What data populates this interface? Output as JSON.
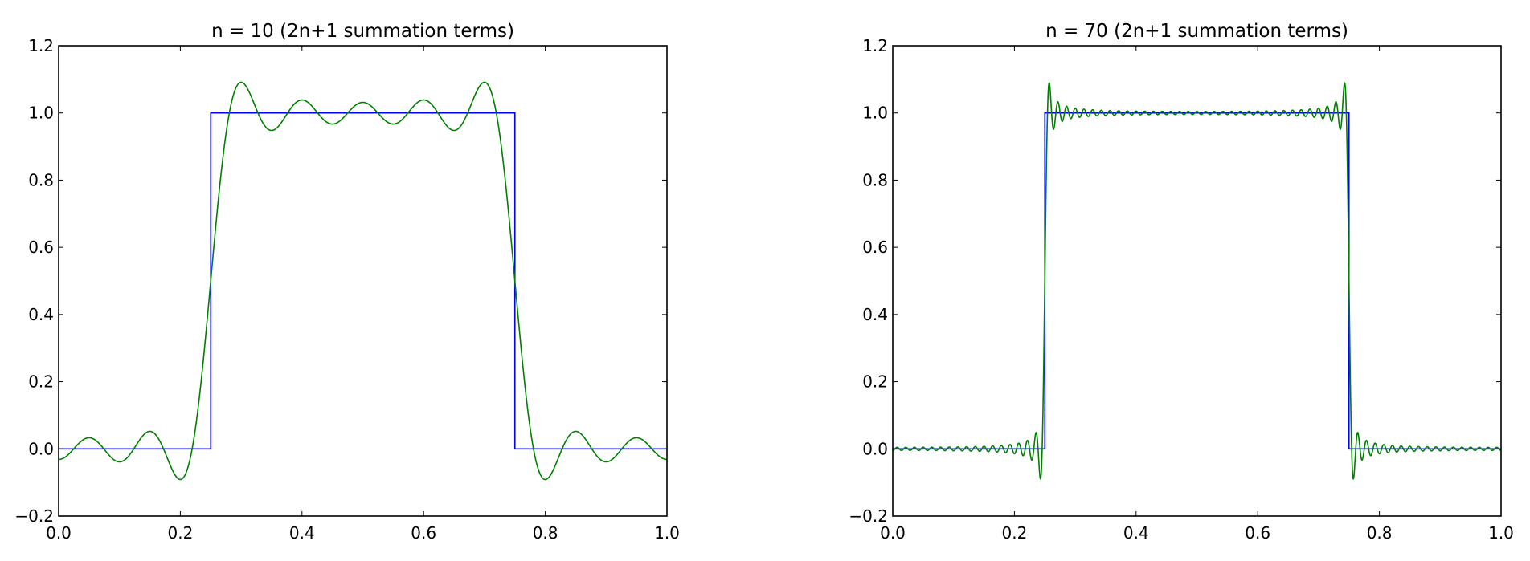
{
  "chart_data": [
    {
      "type": "line",
      "title": "n = 10 (2n+1 summation terms)",
      "n": 10,
      "xlim": [
        0.0,
        1.0
      ],
      "ylim": [
        -0.2,
        1.2
      ],
      "xticks": [
        "0.0",
        "0.2",
        "0.4",
        "0.6",
        "0.8",
        "1.0"
      ],
      "yticks": [
        "−0.2",
        "0.0",
        "0.2",
        "0.4",
        "0.6",
        "0.8",
        "1.0",
        "1.2"
      ],
      "grid": false,
      "series": [
        {
          "color": "#0000ff",
          "kind": "square-wave",
          "x": [
            0.0,
            0.25,
            0.25,
            0.75,
            0.75,
            1.0
          ],
          "y": [
            0,
            0,
            1,
            1,
            0,
            0
          ]
        },
        {
          "color": "#008000",
          "kind": "fourier-partial-sum",
          "terms": 21
        }
      ]
    },
    {
      "type": "line",
      "title": "n = 70 (2n+1 summation terms)",
      "n": 70,
      "xlim": [
        0.0,
        1.0
      ],
      "ylim": [
        -0.2,
        1.2
      ],
      "xticks": [
        "0.0",
        "0.2",
        "0.4",
        "0.6",
        "0.8",
        "1.0"
      ],
      "yticks": [
        "−0.2",
        "0.0",
        "0.2",
        "0.4",
        "0.6",
        "0.8",
        "1.0",
        "1.2"
      ],
      "grid": false,
      "series": [
        {
          "color": "#0000ff",
          "kind": "square-wave",
          "x": [
            0.0,
            0.25,
            0.25,
            0.75,
            0.75,
            1.0
          ],
          "y": [
            0,
            0,
            1,
            1,
            0,
            0
          ]
        },
        {
          "color": "#008000",
          "kind": "fourier-partial-sum",
          "terms": 141
        }
      ]
    }
  ]
}
